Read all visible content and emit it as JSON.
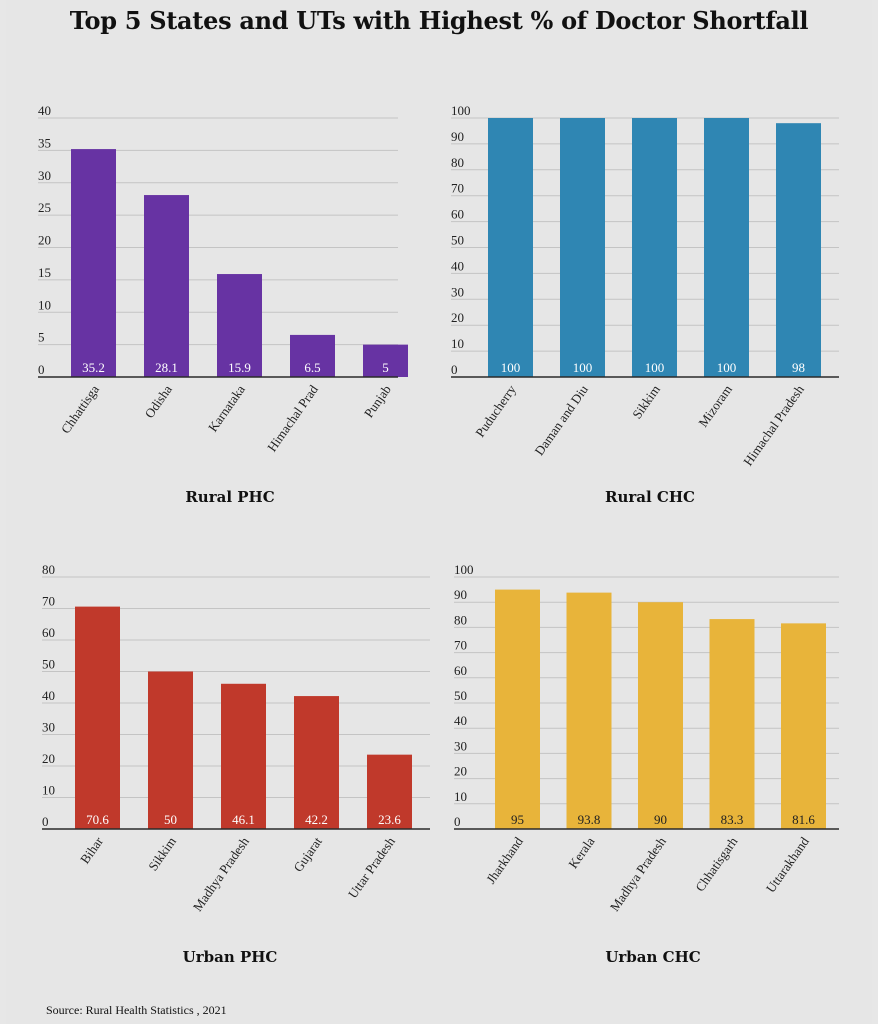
{
  "title": "Top 5 States and UTs with Highest % of Doctor Shortfall",
  "source": "Source: Rural Health Statistics , 2021",
  "colors": {
    "rural_phc": "#6733a3",
    "rural_chc": "#2f86b3",
    "urban_phc": "#c0392b",
    "urban_chc": "#e8b43a"
  },
  "chart_data": [
    {
      "type": "bar",
      "title": "Rural PHC",
      "categories": [
        "Chhattisga",
        "Odisha",
        "Karnataka",
        "Himachal Prad",
        "Punjab"
      ],
      "values": [
        35.2,
        28.1,
        15.9,
        6.5,
        5
      ],
      "value_labels": [
        "35.2",
        "28.1",
        "15.9",
        "6.5",
        "5"
      ],
      "ylim": [
        0,
        40
      ],
      "yticks": [
        0,
        5,
        10,
        15,
        20,
        25,
        30,
        35,
        40
      ],
      "grid": true,
      "color": "#6733a3",
      "label_color": "#ffffff"
    },
    {
      "type": "bar",
      "title": "Rural CHC",
      "categories": [
        "Puducherry",
        "Daman and Diu",
        "Sikkim",
        "Mizoram",
        "Himachal Pradesh"
      ],
      "values": [
        100,
        100,
        100,
        100,
        98
      ],
      "value_labels": [
        "100",
        "100",
        "100",
        "100",
        "98"
      ],
      "ylim": [
        0,
        100
      ],
      "yticks": [
        0,
        10,
        20,
        30,
        40,
        50,
        60,
        70,
        80,
        90,
        100
      ],
      "grid": true,
      "color": "#2f86b3",
      "label_color": "#ffffff"
    },
    {
      "type": "bar",
      "title": "Urban PHC",
      "categories": [
        "Bihar",
        "Sikkim",
        "Madhya Pradesh",
        "Gujarat",
        "Uttar Pradesh"
      ],
      "values": [
        70.6,
        50,
        46.1,
        42.2,
        23.6
      ],
      "value_labels": [
        "70.6",
        "50",
        "46.1",
        "42.2",
        "23.6"
      ],
      "ylim": [
        0,
        80
      ],
      "yticks": [
        0,
        10,
        20,
        30,
        40,
        50,
        60,
        70,
        80
      ],
      "grid": true,
      "color": "#c0392b",
      "label_color": "#ffffff"
    },
    {
      "type": "bar",
      "title": "Urban CHC",
      "categories": [
        "Jharkhand",
        "Kerala",
        "Madhya Pradesh",
        "Chhatisgarh",
        "Uttarakhand"
      ],
      "values": [
        95,
        93.8,
        90,
        83.3,
        81.6
      ],
      "value_labels": [
        "95",
        "93.8",
        "90",
        "83.3",
        "81.6"
      ],
      "ylim": [
        0,
        100
      ],
      "yticks": [
        0,
        10,
        20,
        30,
        40,
        50,
        60,
        70,
        80,
        90,
        100
      ],
      "grid": true,
      "color": "#e8b43a",
      "label_color": "#222222"
    }
  ]
}
